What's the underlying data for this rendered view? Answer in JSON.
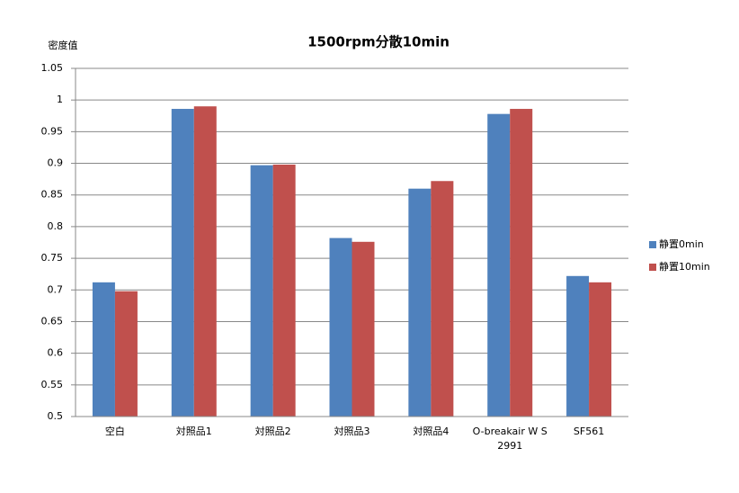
{
  "chart_data": {
    "type": "bar",
    "title": "1500rpm分散10min",
    "y_label": "密度值",
    "categories": [
      "空白",
      "対照品1",
      "対照品2",
      "対照品3",
      "対照品4",
      "O-breakair W S 2991",
      "SF561"
    ],
    "series": [
      {
        "name": "静置0min",
        "color": "#4f81bd",
        "values": [
          0.712,
          0.986,
          0.897,
          0.782,
          0.86,
          0.978,
          0.722
        ]
      },
      {
        "name": "静置10min",
        "color": "#c0504d",
        "values": [
          0.698,
          0.99,
          0.898,
          0.776,
          0.872,
          0.986,
          0.712
        ]
      }
    ],
    "ylim": [
      0.5,
      1.05
    ],
    "yticks": [
      0.5,
      0.55,
      0.6,
      0.65,
      0.7,
      0.75,
      0.8,
      0.85,
      0.9,
      0.95,
      1,
      1.05
    ],
    "grid": true,
    "legend": "right"
  }
}
